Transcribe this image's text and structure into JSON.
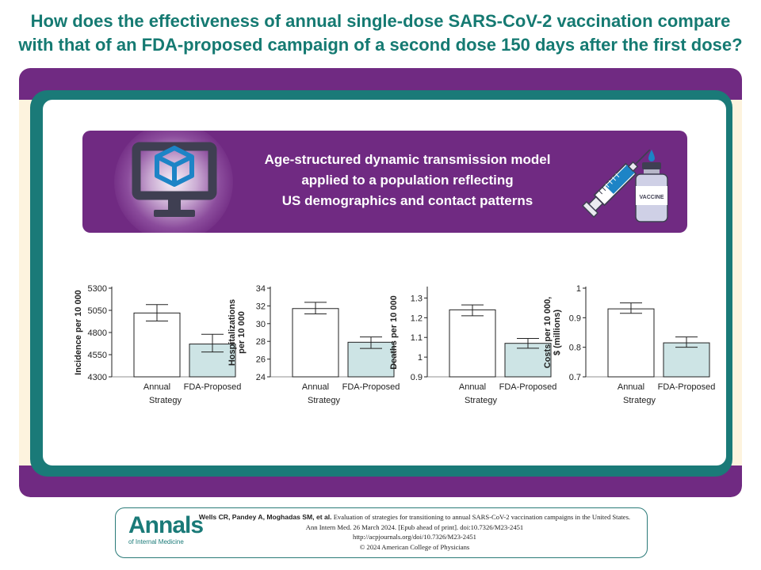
{
  "title": "How does the effectiveness of annual single-dose SARS-CoV-2 vaccination compare with that of an FDA-proposed campaign of a second dose 150 days after the first dose?",
  "model_box": {
    "lines": [
      "Age-structured dynamic transmission model",
      "applied to a population reflecting",
      "US demographics and contact patterns"
    ],
    "monitor_icon": "computer-monitor-cube-icon",
    "vaccine_icon": "syringe-vial-icon",
    "vial_label": "VACCINE"
  },
  "colors": {
    "title": "#157a72",
    "purple": "#702a82",
    "teal": "#1a7a78",
    "cream": "#fdf3de",
    "annual_bar": "#ffffff",
    "fda_bar": "#cde4e5"
  },
  "chart_data": [
    {
      "type": "bar",
      "categories": [
        "Annual",
        "FDA-Proposed"
      ],
      "values": [
        5020,
        4670
      ],
      "error_low": [
        4930,
        4580
      ],
      "error_high": [
        5115,
        4780
      ],
      "ylabel": [
        "Incidence per 10 000"
      ],
      "xlabel": "Strategy",
      "ylim": [
        4300,
        5300
      ],
      "yticks": [
        4300,
        4550,
        4800,
        5050,
        5300
      ],
      "ytick_labels": [
        "4300",
        "4550",
        "4800",
        "5050",
        "5300"
      ]
    },
    {
      "type": "bar",
      "categories": [
        "Annual",
        "FDA-Proposed"
      ],
      "values": [
        31.7,
        27.9
      ],
      "error_low": [
        31.1,
        27.2
      ],
      "error_high": [
        32.4,
        28.5
      ],
      "ylabel": [
        "Hospitalizations",
        "per 10 000"
      ],
      "xlabel": "Strategy",
      "ylim": [
        24,
        34
      ],
      "yticks": [
        24,
        26,
        28,
        30,
        32,
        34
      ],
      "ytick_labels": [
        "24",
        "26",
        "28",
        "30",
        "32",
        "34"
      ]
    },
    {
      "type": "bar",
      "categories": [
        "Annual",
        "FDA-Proposed"
      ],
      "values": [
        1.24,
        1.07
      ],
      "error_low": [
        1.21,
        1.045
      ],
      "error_high": [
        1.265,
        1.095
      ],
      "ylabel": [
        "Deaths per 10 000"
      ],
      "xlabel": "Strategy",
      "ylim": [
        0.9,
        1.35
      ],
      "yticks": [
        0.9,
        1.0,
        1.1,
        1.2,
        1.3
      ],
      "ytick_labels": [
        "0.9",
        "1",
        "1.1",
        "1.2",
        "1.3"
      ]
    },
    {
      "type": "bar",
      "categories": [
        "Annual",
        "FDA-Proposed"
      ],
      "values": [
        0.93,
        0.815
      ],
      "error_low": [
        0.915,
        0.8
      ],
      "error_high": [
        0.95,
        0.835
      ],
      "ylabel": [
        "Costs per 10 000,",
        "$ (millions)"
      ],
      "xlabel": "Strategy",
      "ylim": [
        0.7,
        1.0
      ],
      "yticks": [
        0.7,
        0.8,
        0.9,
        1.0
      ],
      "ytick_labels": [
        "0.7",
        "0.8",
        "0.9",
        "1"
      ]
    }
  ],
  "citation": {
    "logo": "Annals",
    "logo_sub": "of Internal Medicine",
    "authors": "Wells CR, Pandey A, Moghadas SM, et al.",
    "title": "Evaluation of strategies for transitioning to annual SARS-CoV-2 vaccination campaigns in the United States.",
    "journal": "Ann Intern Med. 26 March 2024. [Epub ahead of print]. doi:10.7326/M23-2451",
    "url": "http://acpjournals.org/doi/10.7326/M23-2451",
    "copyright": "© 2024 American College of Physicians"
  }
}
